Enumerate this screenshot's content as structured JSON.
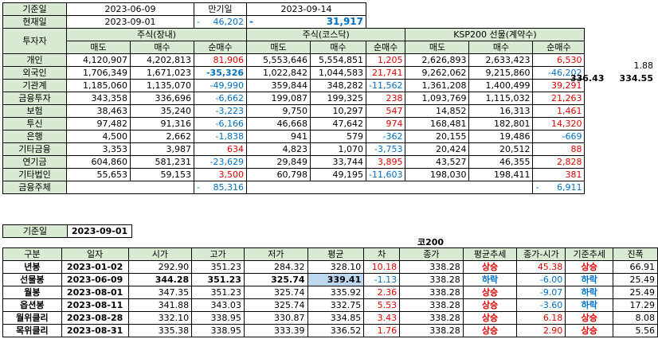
{
  "header": {
    "base_date_label": "기준일",
    "base_date": "2023-06-09",
    "expiry_label": "만기일",
    "expiry_date": "2023-09-14",
    "current_label": "현재일",
    "current_date": "2023-09-01",
    "current_dash1": "-",
    "current_value1": "46,202",
    "current_dash2": "-",
    "current_value2": "31,917"
  },
  "investor_table": {
    "investor_header": "투자자",
    "groups": [
      "주식(장내)",
      "주식(코스닥)",
      "KSP200 선물(계약수)"
    ],
    "sub_headers": [
      "매도",
      "매수",
      "순매수",
      "매도",
      "매수",
      "순매수",
      "매도",
      "매수",
      "순매수"
    ],
    "rows": [
      {
        "name": "개인",
        "v": [
          "4,120,907",
          "4,202,813",
          "81,906",
          "5,553,646",
          "5,554,851",
          "1,205",
          "2,626,893",
          "2,633,423",
          "6,530"
        ]
      },
      {
        "name": "외국인",
        "v": [
          "1,706,349",
          "1,671,023",
          "-35,326",
          "1,022,842",
          "1,044,583",
          "21,741",
          "9,262,062",
          "9,215,860",
          "-46,202"
        ]
      },
      {
        "name": "기관계",
        "v": [
          "1,185,060",
          "1,135,070",
          "-49,990",
          "359,844",
          "348,282",
          "-11,562",
          "1,361,208",
          "1,400,499",
          "39,291"
        ]
      },
      {
        "name": "금융투자",
        "v": [
          "343,358",
          "336,696",
          "-6,662",
          "199,087",
          "199,325",
          "238",
          "1,093,769",
          "1,115,032",
          "21,263"
        ]
      },
      {
        "name": "보험",
        "v": [
          "38,463",
          "35,240",
          "-3,223",
          "9,750",
          "10,297",
          "547",
          "14,852",
          "16,313",
          "1,461"
        ]
      },
      {
        "name": "투신",
        "v": [
          "97,482",
          "91,316",
          "-6,166",
          "46,668",
          "47,642",
          "974",
          "168,481",
          "182,801",
          "14,320"
        ]
      },
      {
        "name": "은행",
        "v": [
          "4,500",
          "2,662",
          "-1,838",
          "941",
          "579",
          "-362",
          "20,155",
          "19,486",
          "-669"
        ]
      },
      {
        "name": "기타금융",
        "v": [
          "3,353",
          "3,987",
          "634",
          "4,823",
          "1,070",
          "-3,753",
          "20,424",
          "20,512",
          "88"
        ]
      },
      {
        "name": "연기금",
        "v": [
          "604,860",
          "581,231",
          "-23,629",
          "29,849",
          "33,744",
          "3,895",
          "43,527",
          "46,355",
          "2,828"
        ]
      },
      {
        "name": "기타법인",
        "v": [
          "55,653",
          "59,153",
          "3,500",
          "60,798",
          "49,195",
          "-11,603",
          "198,030",
          "198,411",
          "381"
        ]
      }
    ],
    "total_row": {
      "name": "금융주체",
      "dash1": "-",
      "value1": "85,316",
      "dash2": "-",
      "value2": "6,911"
    }
  },
  "side_values": {
    "row1": "1.88",
    "row2_a": "336.43",
    "row2_b": "334.55"
  },
  "bottom_section": {
    "base_date_label": "기준일",
    "base_date": "2023-09-01",
    "title": "코200",
    "headers": [
      "구분",
      "일자",
      "시가",
      "고가",
      "저가",
      "평균",
      "차",
      "종가",
      "평균추세",
      "종가-시가",
      "기준추세",
      "진폭"
    ],
    "rows": [
      {
        "c": [
          "년봉",
          "2023-01-02",
          "292.90",
          "351.23",
          "284.32",
          "328.10",
          "10.18",
          "338.28",
          "상승",
          "45.38",
          "상승",
          "66.91"
        ]
      },
      {
        "c": [
          "선물봉",
          "2023-06-09",
          "344.28",
          "351.23",
          "325.74",
          "339.41",
          "-1.13",
          "338.28",
          "하락",
          "-6.00",
          "하락",
          "25.49"
        ]
      },
      {
        "c": [
          "월봉",
          "2023-08-01",
          "347.35",
          "351.23",
          "325.74",
          "335.92",
          "2.36",
          "338.28",
          "상승",
          "-9.07",
          "하락",
          "25.49"
        ]
      },
      {
        "c": [
          "옵션봉",
          "2023-08-11",
          "341.88",
          "343.03",
          "325.74",
          "332.75",
          "5.53",
          "338.28",
          "상승",
          "-3.60",
          "하락",
          "17.29"
        ]
      },
      {
        "c": [
          "월위클리",
          "2023-08-28",
          "332.10",
          "338.95",
          "330.87",
          "334.85",
          "3.43",
          "338.28",
          "상승",
          "6.18",
          "상승",
          "8.08"
        ]
      },
      {
        "c": [
          "목위클리",
          "2023-08-31",
          "335.38",
          "338.95",
          "333.39",
          "336.52",
          "1.76",
          "338.28",
          "상승",
          "2.90",
          "상승",
          "5.56"
        ]
      }
    ]
  }
}
